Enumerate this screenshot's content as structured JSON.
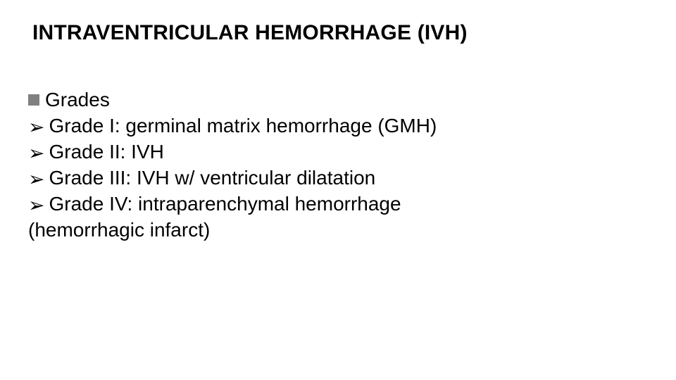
{
  "slide": {
    "background_color": "#ffffff",
    "text_color": "#000000",
    "title": {
      "text": "INTRAVENTRICULAR HEMORRHAGE (IVH)",
      "font_size": 30,
      "font_weight": 700
    },
    "content": {
      "font_size": 28,
      "bullet_square_color": "#808080",
      "arrow_glyph": "➢",
      "section_label": "Grades",
      "items": [
        "Grade I: germinal matrix hemorrhage (GMH)",
        "Grade II: IVH",
        "Grade III: IVH w/ ventricular dilatation",
        "Grade IV: intraparenchymal hemorrhage"
      ],
      "trailing_line": "(hemorrhagic infarct)"
    }
  }
}
